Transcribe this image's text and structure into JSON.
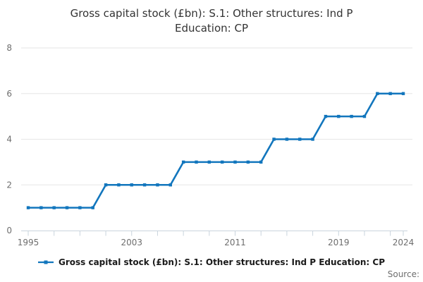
{
  "title": {
    "line1": "Gross capital stock (£bn): S.1: Other structures: Ind P",
    "line2": "Education: CP"
  },
  "chart_data": {
    "type": "line",
    "title": "Gross capital stock (£bn): S.1: Other structures: Ind P Education: CP",
    "x": [
      1995,
      1996,
      1997,
      1998,
      1999,
      2000,
      2001,
      2002,
      2003,
      2004,
      2005,
      2006,
      2007,
      2008,
      2009,
      2010,
      2011,
      2012,
      2013,
      2014,
      2015,
      2016,
      2017,
      2018,
      2019,
      2020,
      2021,
      2022,
      2023,
      2024
    ],
    "series": [
      {
        "name": "Gross capital stock (£bn): S.1: Other structures: Ind P Education: CP",
        "values": [
          1,
          1,
          1,
          1,
          1,
          1,
          2,
          2,
          2,
          2,
          2,
          2,
          3,
          3,
          3,
          3,
          3,
          3,
          3,
          4,
          4,
          4,
          4,
          5,
          5,
          5,
          5,
          6,
          6,
          6
        ]
      }
    ],
    "xlabel": "",
    "ylabel": "",
    "ylim": [
      0,
      8
    ],
    "yticks": [
      0,
      2,
      4,
      6,
      8
    ],
    "xtick_minor_every": 2,
    "xtick_labels": [
      1995,
      2003,
      2011,
      2019,
      2024
    ],
    "grid": true,
    "legend_position": "bottom",
    "colors": {
      "line": "#1276bd",
      "grid": "#e6e6e6",
      "axis": "#c9d4dd",
      "tick_text": "#6e6e6e"
    }
  },
  "legend": {
    "label": "Gross capital stock (£bn): S.1: Other structures: Ind P Education: CP"
  },
  "footer": {
    "source_label": "Source:"
  }
}
